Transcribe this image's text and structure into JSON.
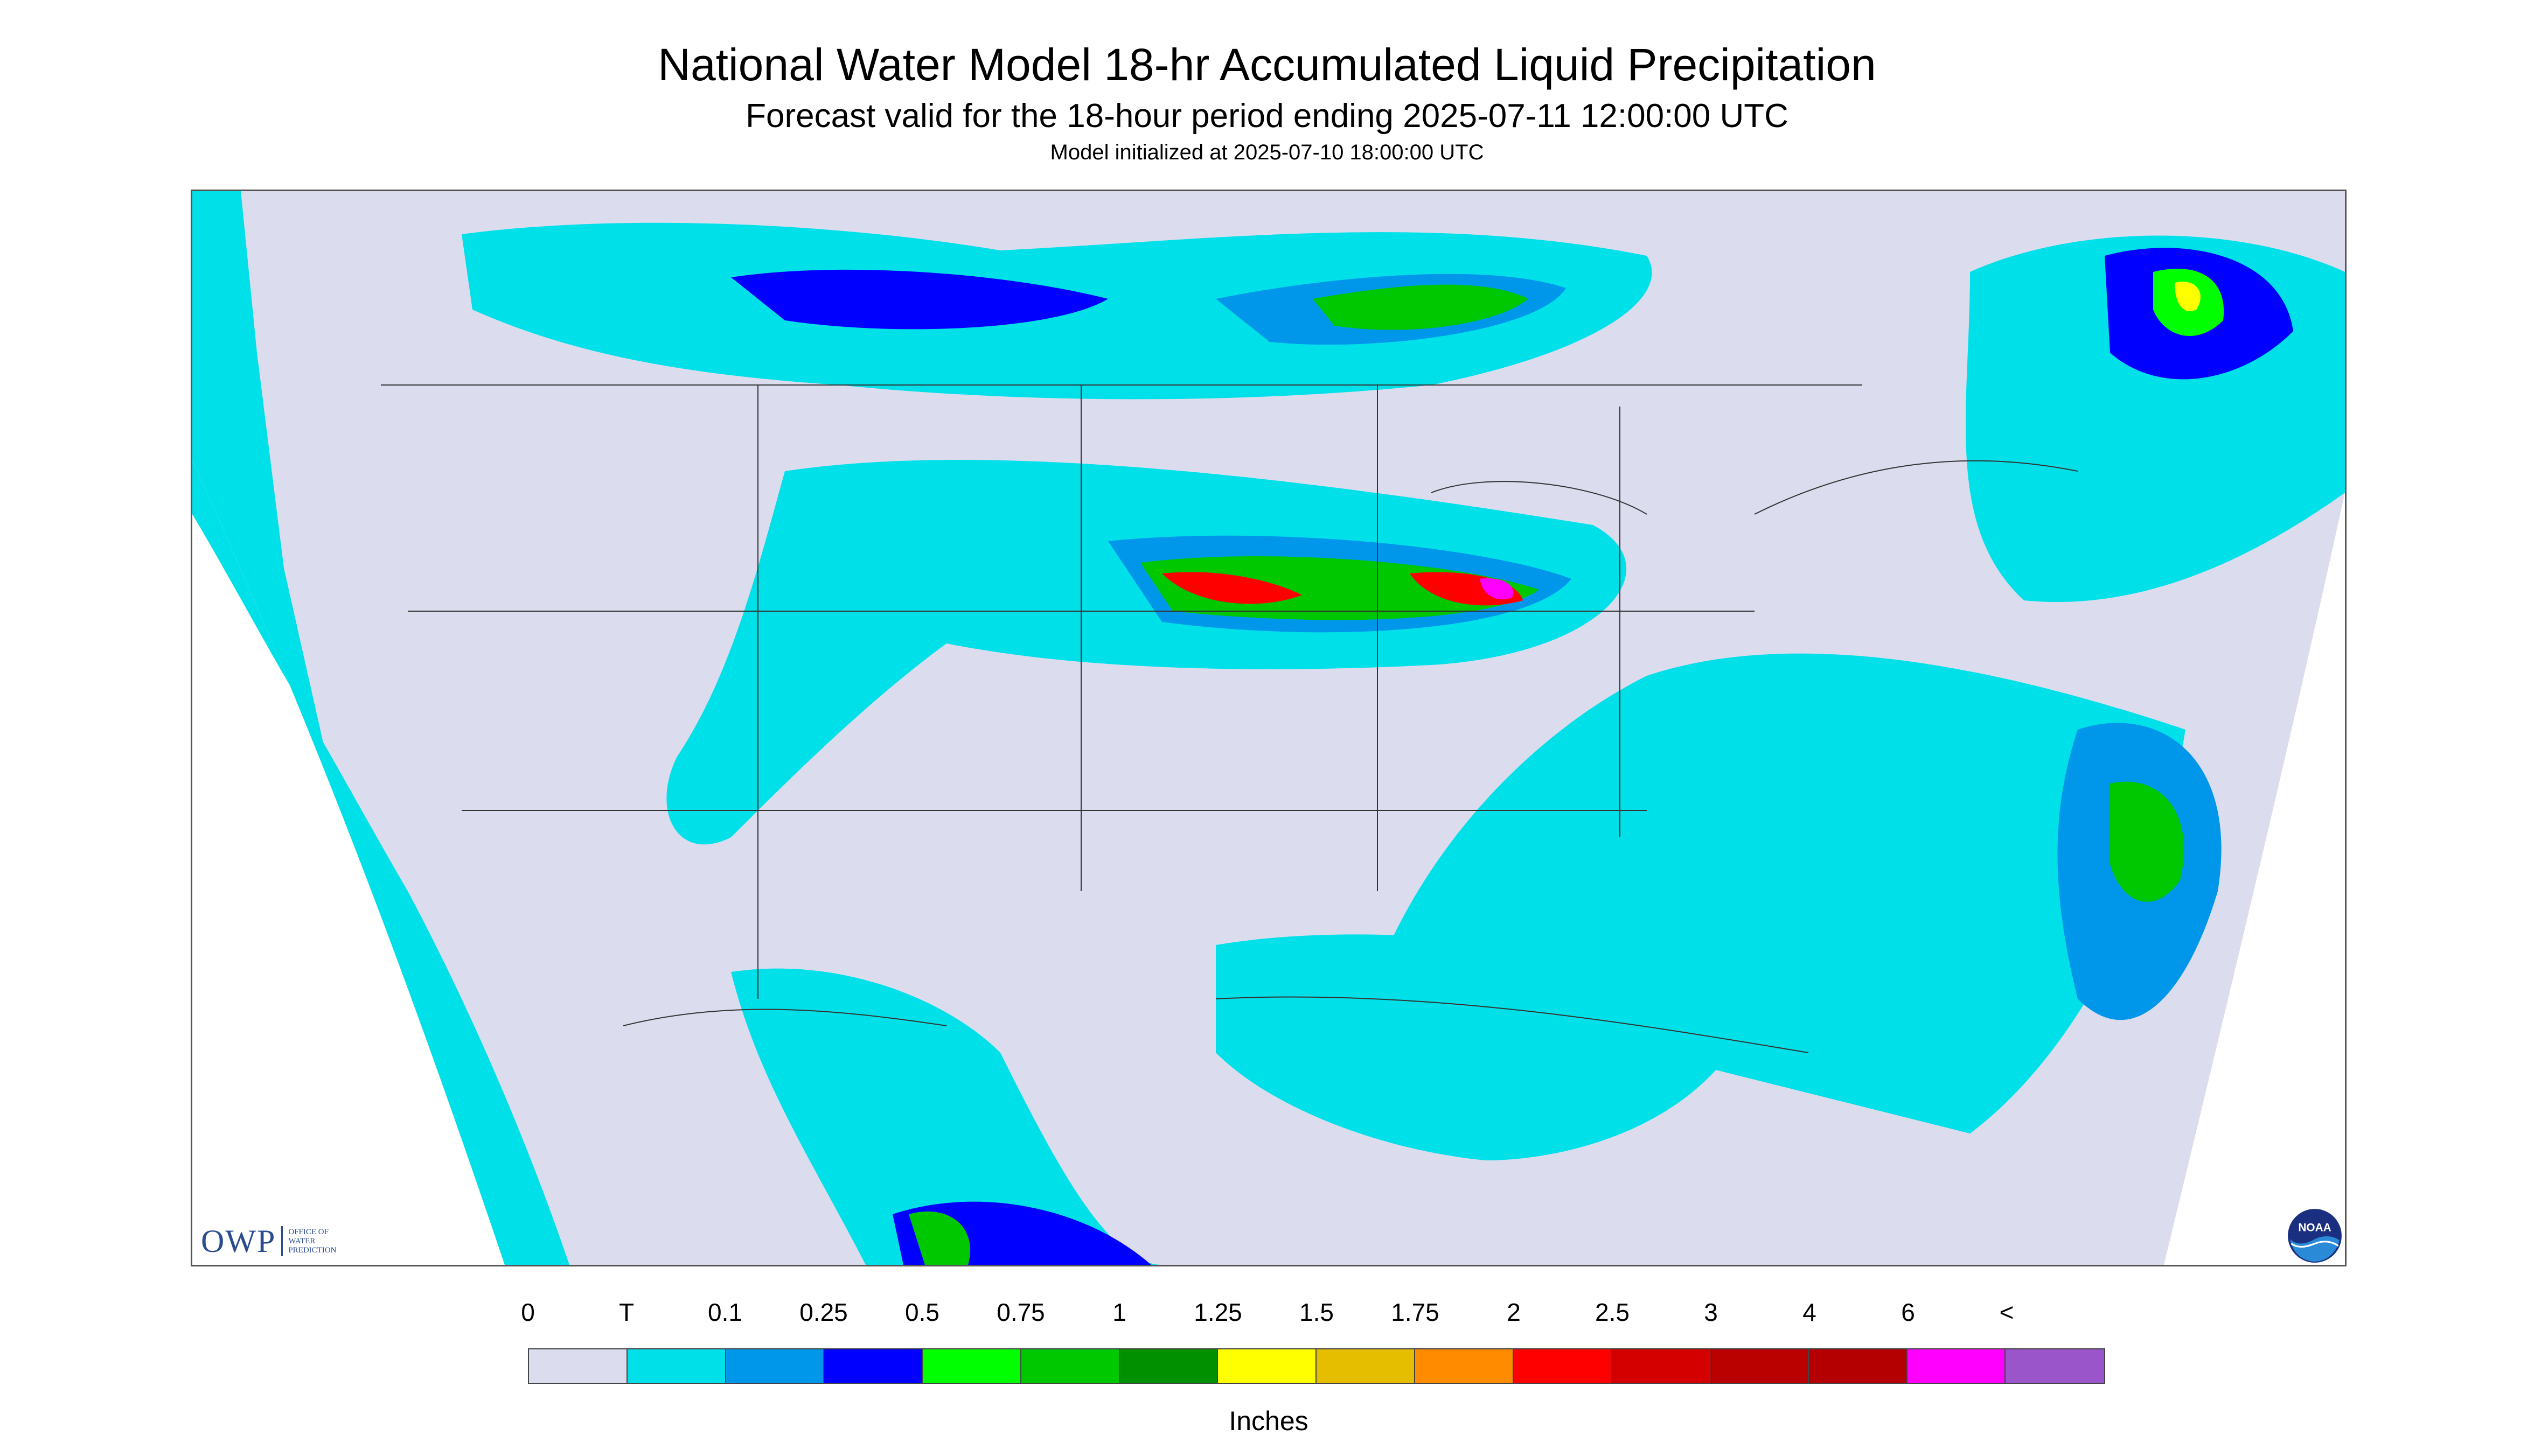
{
  "header": {
    "title": "National Water Model 18-hr Accumulated Liquid Precipitation",
    "subtitle": "Forecast valid for the 18-hour period ending 2025-07-11 12:00:00 UTC",
    "init": "Model initialized at 2025-07-10 18:00:00 UTC"
  },
  "logos": {
    "owp_mark": "OWP",
    "owp_line1": "OFFICE OF",
    "owp_line2": "WATER",
    "owp_line3": "PREDICTION",
    "noaa_text": "NOAA"
  },
  "legend": {
    "units": "Inches",
    "tick_labels": [
      "0",
      "T",
      "0.1",
      "0.25",
      "0.5",
      "0.75",
      "1",
      "1.25",
      "1.5",
      "1.75",
      "2",
      "2.5",
      "3",
      "4",
      "6",
      "<"
    ],
    "colors": [
      "#dcdcef",
      "#00e0e8",
      "#0096ea",
      "#0000ff",
      "#00ff00",
      "#00c800",
      "#009000",
      "#ffff00",
      "#e6be00",
      "#ff8c00",
      "#ff0000",
      "#d40000",
      "#bb0000",
      "#b40000",
      "#ff00ff",
      "#9955c9"
    ]
  },
  "colors": {
    "no_data": "#ffffff",
    "zero": "#dcdcef",
    "trace": "#00e0e8",
    "light": "#0096ea",
    "moderate": "#0000ff",
    "green": "#00c800",
    "yellow": "#ffff00",
    "red": "#ff0000",
    "magenta": "#ff00ff",
    "boundary": "#333333"
  }
}
